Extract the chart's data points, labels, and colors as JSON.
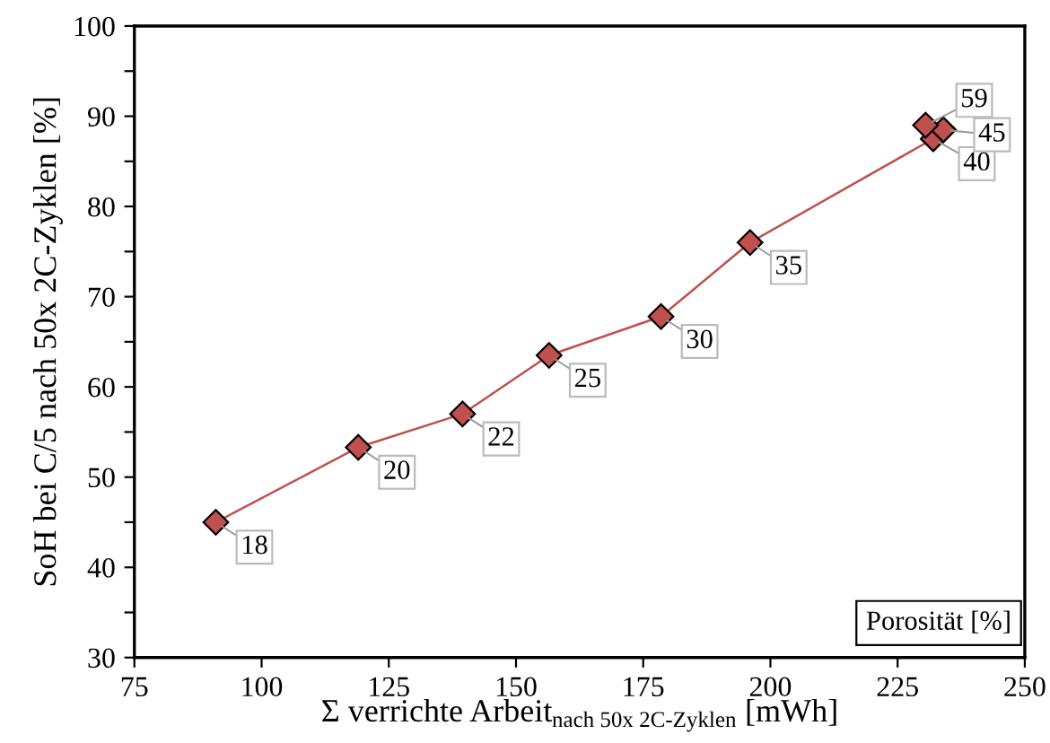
{
  "chart_data": {
    "type": "line",
    "xlabel": "Σ verrichte Arbeit$_{nach 50x 2C-Zyklen}$ [mWh]",
    "ylabel": "SoH bei C/5 nach 50x 2C-Zyklen [%]",
    "series": [
      {
        "color": "#c0504d",
        "x": [
          91,
          119,
          139.5,
          156.5,
          178.5,
          196,
          232,
          234,
          230.5
        ],
        "values": [
          45,
          53.3,
          57,
          63.5,
          67.8,
          76,
          87.5,
          88.5,
          89
        ]
      }
    ],
    "marker": "diamond",
    "line_style": "solid",
    "grid": false,
    "legend": false,
    "xlim": [
      75,
      250
    ],
    "xticks": [
      75,
      100,
      125,
      150,
      175,
      200,
      225,
      250
    ],
    "ylim": [
      30,
      100
    ],
    "yticks": [
      30,
      {
        "value": 35,
        "label": null
      },
      40,
      {
        "value": 45,
        "label": null
      },
      50,
      {
        "value": 55,
        "label": null
      },
      60,
      {
        "value": 65,
        "label": null
      },
      70,
      {
        "value": 75,
        "label": null
      },
      80,
      {
        "value": 85,
        "label": null
      },
      90,
      {
        "value": 95,
        "label": null
      },
      100
    ],
    "annotations": [
      {
        "text": "18",
        "x": 91,
        "y": 45
      },
      {
        "text": "20",
        "x": 119,
        "y": 53.3
      },
      {
        "text": "22",
        "x": 139.5,
        "y": 57
      },
      {
        "text": "25",
        "x": 156.5,
        "y": 63.5
      },
      {
        "text": "30",
        "x": 178.5,
        "y": 67.8
      },
      {
        "text": "35",
        "x": 196,
        "y": 76
      },
      {
        "text": "40",
        "x": 232,
        "y": 87.5
      },
      {
        "text": "45",
        "x": 234,
        "y": 88.5
      },
      {
        "text": "59",
        "x": 230.5,
        "y": 89
      },
      "Porosität [%]"
    ]
  }
}
